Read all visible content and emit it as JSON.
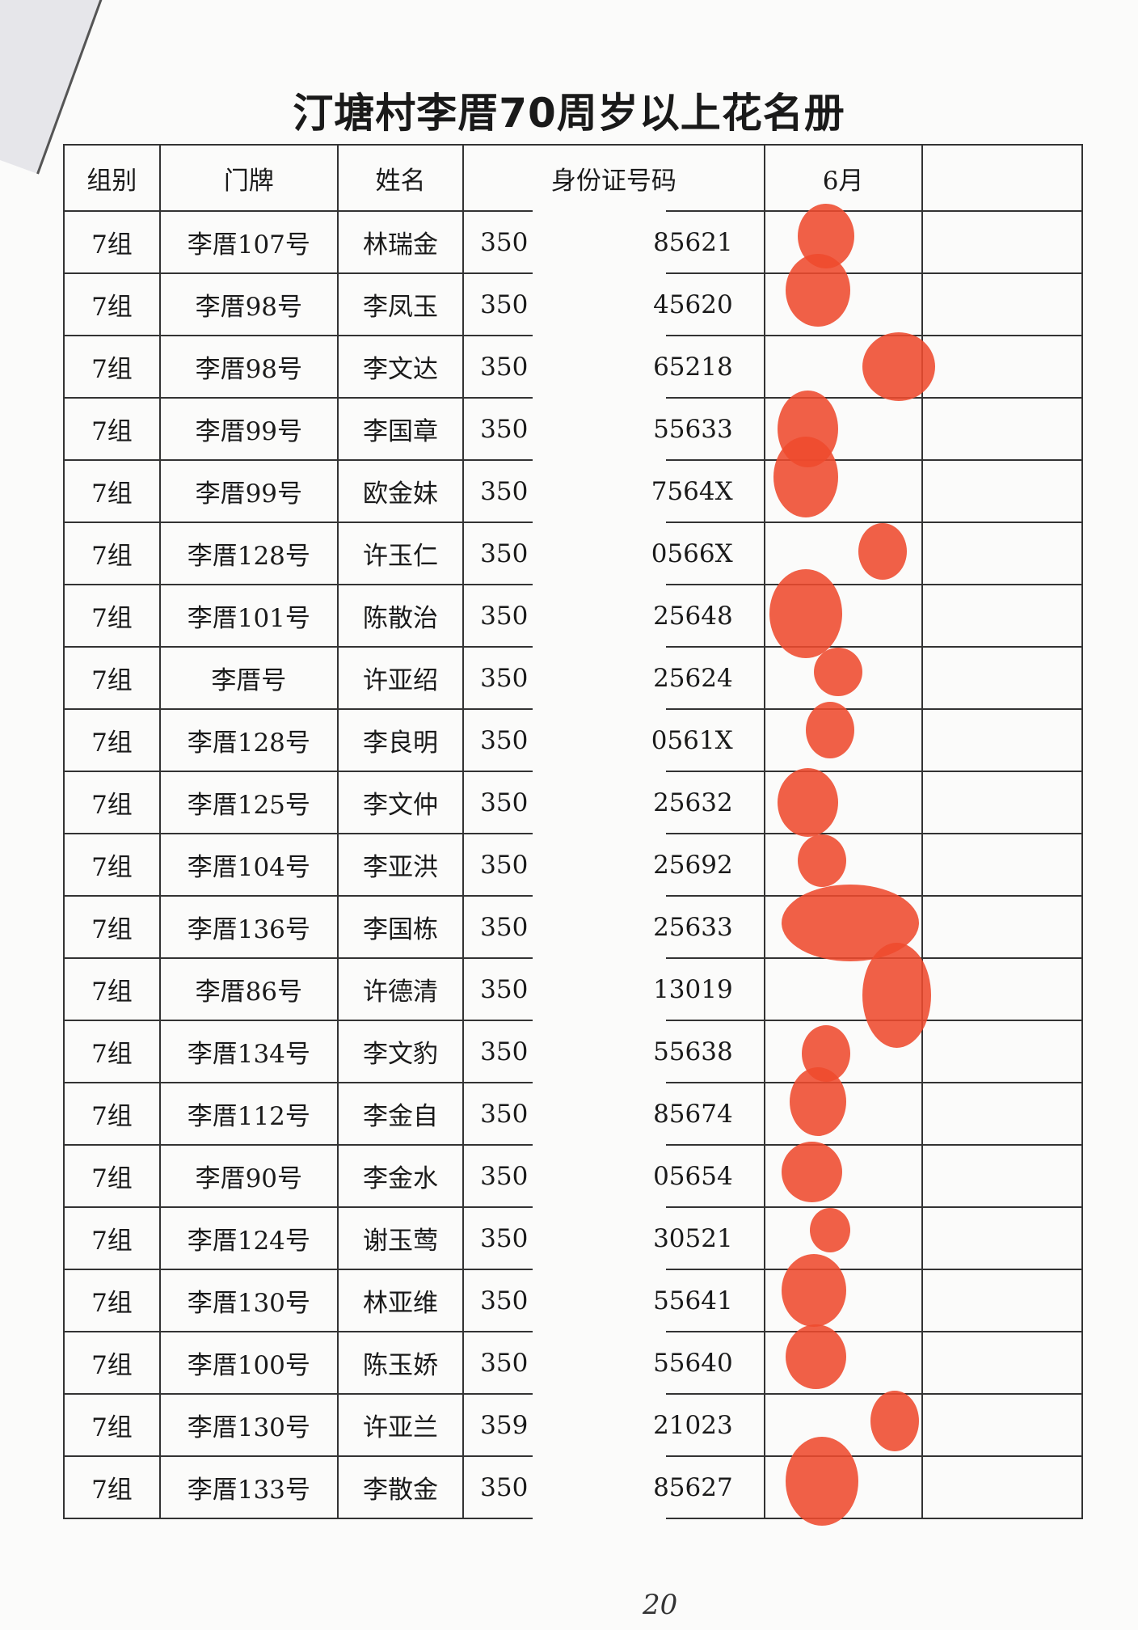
{
  "title": "汀塘村李厝70周岁以上花名册",
  "headers": [
    "组别",
    "门牌",
    "姓名",
    "身份证号码",
    "6月",
    ""
  ],
  "rows": [
    {
      "group": "7组",
      "door": "李厝107号",
      "name": "林瑞金",
      "id_prefix": "350",
      "id_suffix": "85621"
    },
    {
      "group": "7组",
      "door": "李厝98号",
      "name": "李凤玉",
      "id_prefix": "350",
      "id_suffix": "45620"
    },
    {
      "group": "7组",
      "door": "李厝98号",
      "name": "李文达",
      "id_prefix": "350",
      "id_suffix": "65218"
    },
    {
      "group": "7组",
      "door": "李厝99号",
      "name": "李国章",
      "id_prefix": "350",
      "id_suffix": "55633"
    },
    {
      "group": "7组",
      "door": "李厝99号",
      "name": "欧金妹",
      "id_prefix": "350",
      "id_suffix": "7564X"
    },
    {
      "group": "7组",
      "door": "李厝128号",
      "name": "许玉仁",
      "id_prefix": "350",
      "id_suffix": "0566X"
    },
    {
      "group": "7组",
      "door": "李厝101号",
      "name": "陈散治",
      "id_prefix": "350",
      "id_suffix": "25648"
    },
    {
      "group": "7组",
      "door": "李厝号",
      "name": "许亚绍",
      "id_prefix": "350",
      "id_suffix": "25624"
    },
    {
      "group": "7组",
      "door": "李厝128号",
      "name": "李良明",
      "id_prefix": "350",
      "id_suffix": "0561X"
    },
    {
      "group": "7组",
      "door": "李厝125号",
      "name": "李文仲",
      "id_prefix": "350",
      "id_suffix": "25632"
    },
    {
      "group": "7组",
      "door": "李厝104号",
      "name": "李亚洪",
      "id_prefix": "350",
      "id_suffix": "25692"
    },
    {
      "group": "7组",
      "door": "李厝136号",
      "name": "李国栋",
      "id_prefix": "350",
      "id_suffix": "25633"
    },
    {
      "group": "7组",
      "door": "李厝86号",
      "name": "许德清",
      "id_prefix": "350",
      "id_suffix": "13019"
    },
    {
      "group": "7组",
      "door": "李厝134号",
      "name": "李文豹",
      "id_prefix": "350",
      "id_suffix": "55638"
    },
    {
      "group": "7组",
      "door": "李厝112号",
      "name": "李金自",
      "id_prefix": "350",
      "id_suffix": "85674"
    },
    {
      "group": "7组",
      "door": "李厝90号",
      "name": "李金水",
      "id_prefix": "350",
      "id_suffix": "05654"
    },
    {
      "group": "7组",
      "door": "李厝124号",
      "name": "谢玉莺",
      "id_prefix": "350",
      "id_suffix": "30521"
    },
    {
      "group": "7组",
      "door": "李厝130号",
      "name": "林亚维",
      "id_prefix": "350",
      "id_suffix": "55641"
    },
    {
      "group": "7组",
      "door": "李厝100号",
      "name": "陈玉娇",
      "id_prefix": "350",
      "id_suffix": "55640"
    },
    {
      "group": "7组",
      "door": "李厝130号",
      "name": "许亚兰",
      "id_prefix": "359",
      "id_suffix": "21023"
    },
    {
      "group": "7组",
      "door": "李厝133号",
      "name": "李散金",
      "id_prefix": "350",
      "id_suffix": "85627"
    }
  ],
  "fingerprint_color": "#ee4a2e",
  "page_number": "20"
}
